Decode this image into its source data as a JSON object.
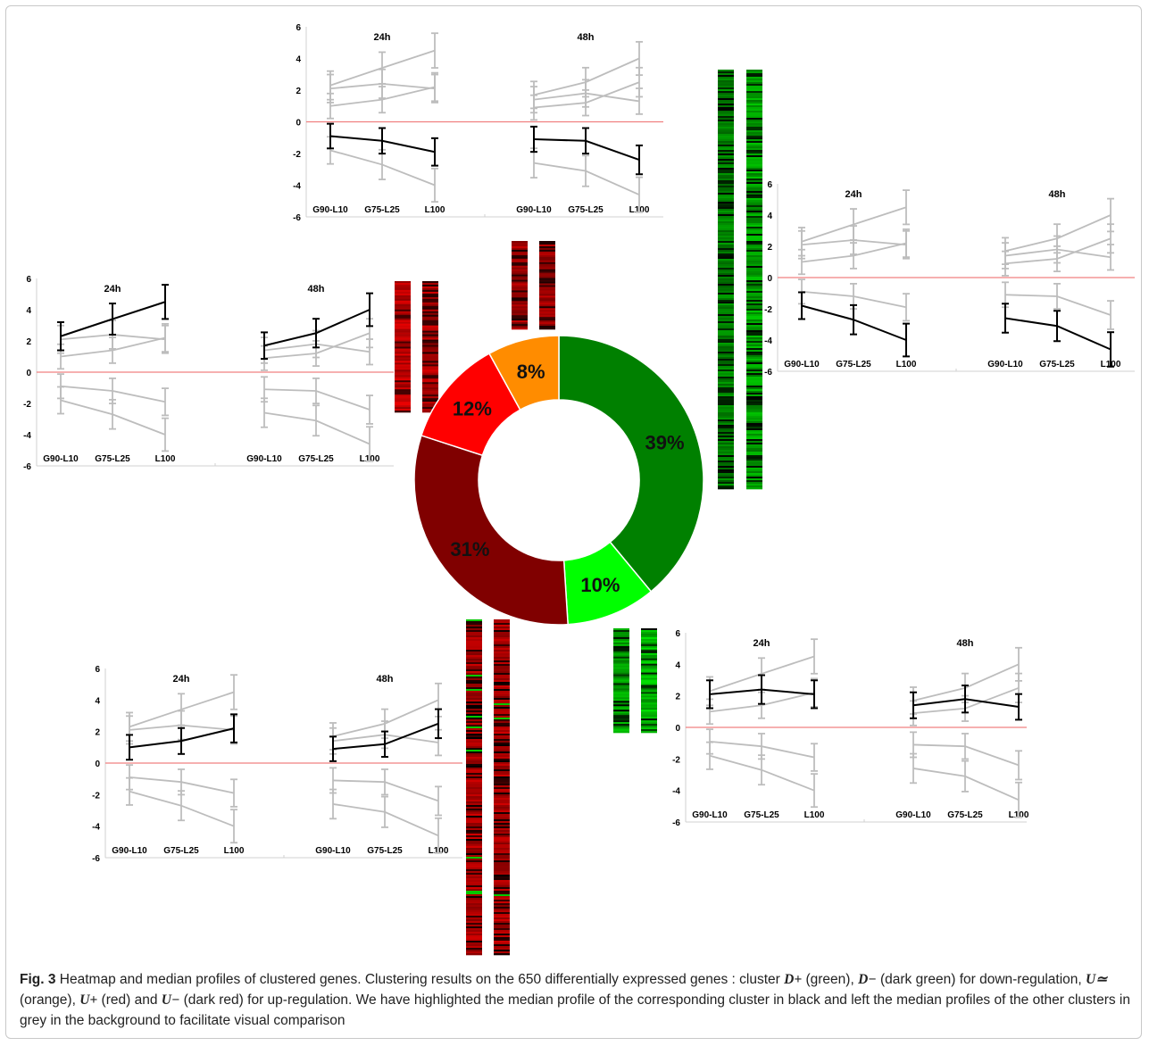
{
  "chart_data": {
    "type": "line",
    "categories": [
      "G90-L10",
      "G75-L25",
      "L100"
    ],
    "panel_titles": [
      "24h",
      "48h"
    ],
    "ylim": [
      -6,
      6
    ],
    "yticks": [
      "6",
      "4",
      "2",
      "0",
      "-2",
      "-4",
      "-6"
    ],
    "zero_line_color": "#f08080",
    "highlight_color": "#000000",
    "background_color": "#bdbdbd",
    "profiles": [
      {
        "cluster": "U+",
        "values_24h": [
          2.3,
          3.4,
          4.5
        ],
        "values_48h": [
          1.7,
          2.5,
          4.0
        ]
      },
      {
        "cluster": "U~",
        "values_24h": [
          2.1,
          2.4,
          2.1
        ],
        "values_48h": [
          1.4,
          1.8,
          1.3
        ]
      },
      {
        "cluster": "U-",
        "values_24h": [
          1.0,
          1.4,
          2.2
        ],
        "values_48h": [
          0.9,
          1.2,
          2.5
        ]
      },
      {
        "cluster": "D+",
        "values_24h": [
          -0.9,
          -1.2,
          -1.9
        ],
        "values_48h": [
          -1.1,
          -1.2,
          -2.4
        ]
      },
      {
        "cluster": "D-",
        "values_24h": [
          -1.8,
          -2.7,
          -4.0
        ],
        "values_48h": [
          -2.6,
          -3.1,
          -4.6
        ]
      }
    ],
    "donut": [
      {
        "cluster": "D+",
        "label": "39%",
        "value": 39,
        "color": "#008000"
      },
      {
        "cluster": "D-",
        "label": "10%",
        "value": 10,
        "color": "#00ff00"
      },
      {
        "cluster": "U-",
        "label": "31%",
        "value": 31,
        "color": "#800000"
      },
      {
        "cluster": "U+",
        "label": "12%",
        "value": 12,
        "color": "#ff0000"
      },
      {
        "cluster": "U~",
        "label": "8%",
        "value": 8,
        "color": "#ff8c00"
      }
    ]
  },
  "caption": {
    "fig_label": "Fig. 3",
    "parts": [
      " Heatmap and median profiles of clustered genes. Clustering results on the 650 differentially expressed genes : cluster ",
      " (green), ",
      " (dark green) for down-regulation, ",
      " (orange), ",
      " (red) and ",
      " (dark red) for up-regulation. We have highlighted the median profile of the corresponding cluster in black and left the median profiles of the other clusters in grey in the background to facilitate visual comparison"
    ],
    "symbols": [
      "D+",
      "D−",
      "U≃",
      "U+",
      "U−"
    ]
  }
}
